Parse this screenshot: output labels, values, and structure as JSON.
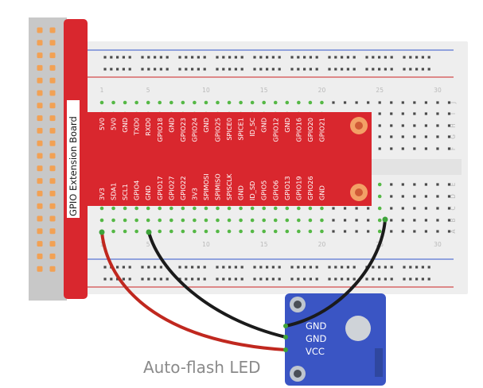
{
  "colors": {
    "breadboard": "#eeeeee",
    "rail_blue": "#3355cc",
    "rail_red": "#cc2222",
    "extension_board": "#d9272e",
    "raspberry_header": "#c8c8c8",
    "header_pin": "#f2a154",
    "module": "#3a55c4",
    "wire_red": "#c0281f",
    "wire_black": "#1b1b1b",
    "wire_tip": "#3ea33a"
  },
  "extension_board": {
    "title": "GPIO Extension Board",
    "top_pins": [
      "5V0",
      "5V0",
      "GND",
      "TXD0",
      "RXD0",
      "GPIO18",
      "GND",
      "GPIO23",
      "GPIO24",
      "GND",
      "GPIO25",
      "SPICE0",
      "SPICE1",
      "ID_SC",
      "GND",
      "GPIO12",
      "GND",
      "GPIO16",
      "GPIO20",
      "GPIO21"
    ],
    "bottom_pins": [
      "3V3",
      "SDA1",
      "SCL1",
      "GPIO4",
      "GND",
      "GPIO17",
      "GPIO27",
      "GPIO22",
      "3V3",
      "SPIMOSI",
      "SPIMISO",
      "SPISCLK",
      "GND",
      "ID_SD",
      "GPIO5",
      "GPIO6",
      "GPIO13",
      "GPIO19",
      "GPIO26",
      "GND"
    ]
  },
  "breadboard": {
    "column_numbers": [
      "1",
      "5",
      "10",
      "15",
      "20",
      "25",
      "30"
    ],
    "row_letters": [
      "J",
      "I",
      "H",
      "G",
      "F",
      "E",
      "D",
      "C",
      "B",
      "A"
    ]
  },
  "module": {
    "pins": [
      "GND",
      "GND",
      "VCC"
    ]
  },
  "caption": "Auto-flash LED"
}
